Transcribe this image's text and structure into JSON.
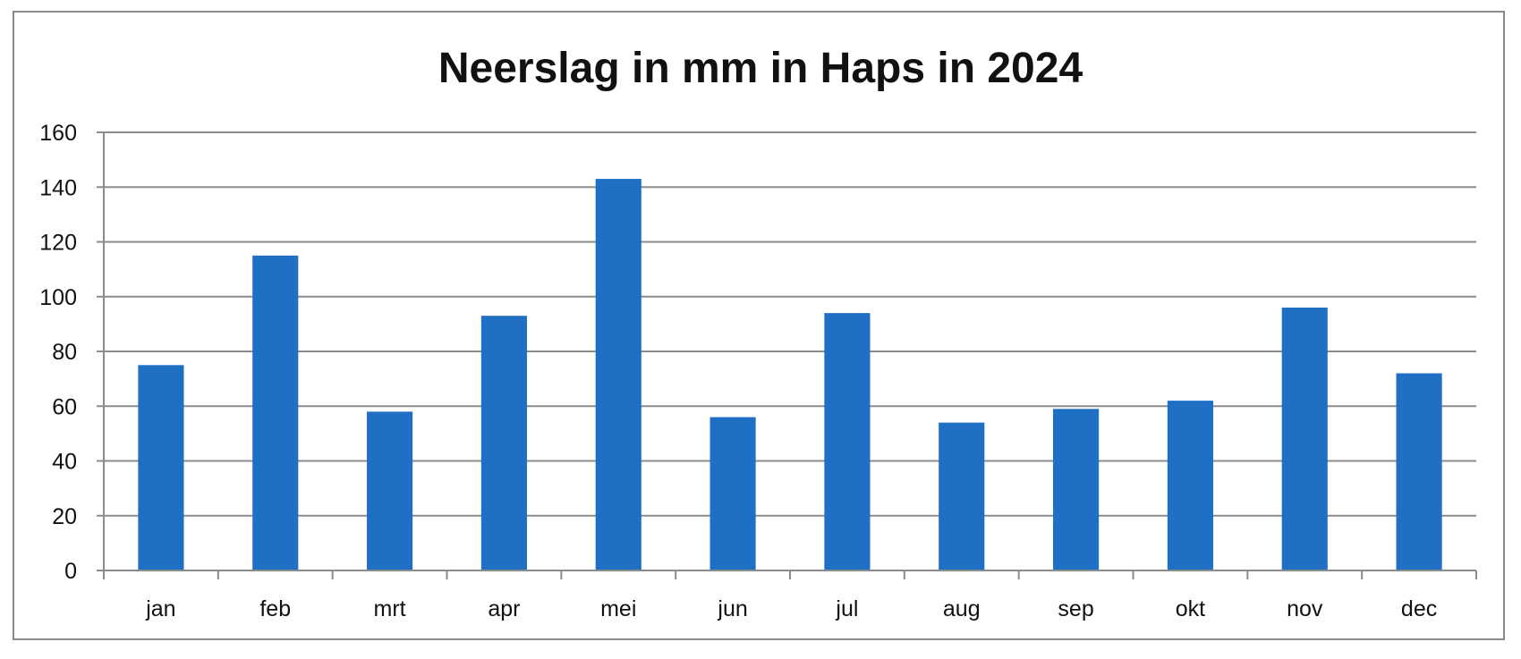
{
  "chart_data": {
    "type": "bar",
    "title": "Neerslag in mm in Haps in 2024",
    "xlabel": "",
    "ylabel": "",
    "categories": [
      "jan",
      "feb",
      "mrt",
      "apr",
      "mei",
      "jun",
      "jul",
      "aug",
      "sep",
      "okt",
      "nov",
      "dec"
    ],
    "values": [
      75,
      115,
      58,
      93,
      143,
      56,
      94,
      54,
      59,
      62,
      96,
      72
    ],
    "ylim": [
      0,
      160
    ],
    "yticks": [
      0,
      20,
      40,
      60,
      80,
      100,
      120,
      140,
      160
    ],
    "grid": true,
    "legend": "none",
    "bar_color": "#1f6fc5",
    "grid_color": "#8c8c8c",
    "axis_color": "#8c8c8c"
  }
}
